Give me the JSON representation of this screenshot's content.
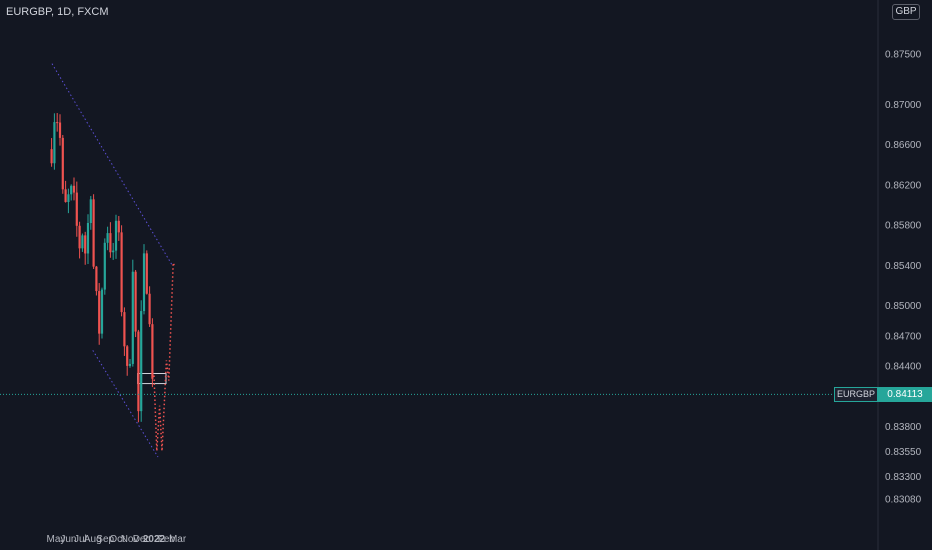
{
  "header": {
    "title": "EURGBP, 1D, FXCM",
    "currency": "GBP"
  },
  "last_price": {
    "symbol": "EURGBP",
    "value": "0.84113"
  },
  "colors": {
    "background": "#131722",
    "up": "#26a69a",
    "down": "#ef5350",
    "channel": "#5b4fd6",
    "projection": "#ef5350",
    "grid_text": "#b2b5be"
  },
  "chart_data": {
    "type": "candlestick",
    "title": "EURGBP, 1D, FXCM",
    "ylim": [
      0.8295,
      0.8755
    ],
    "y_ticks": [
      "0.87500",
      "0.87000",
      "0.86600",
      "0.86200",
      "0.85800",
      "0.85400",
      "0.85000",
      "0.84700",
      "0.84400",
      "0.83800",
      "0.83550",
      "0.83300",
      "0.83080"
    ],
    "x_ticks": [
      "May",
      "Jun",
      "Jul",
      "Aug",
      "Sep",
      "Oct",
      "Nov",
      "Dec",
      "2022",
      "Feb",
      "Mar"
    ],
    "close_path": [
      [
        "2021-04-20",
        0.8655
      ],
      [
        "2021-04-27",
        0.869
      ],
      [
        "2021-05-03",
        0.868
      ],
      [
        "2021-05-07",
        0.8705
      ],
      [
        "2021-05-12",
        0.8655
      ],
      [
        "2021-05-17",
        0.8605
      ],
      [
        "2021-05-21",
        0.861
      ],
      [
        "2021-05-27",
        0.859
      ],
      [
        "2021-06-01",
        0.8605
      ],
      [
        "2021-06-07",
        0.862
      ],
      [
        "2021-06-10",
        0.859
      ],
      [
        "2021-06-15",
        0.86
      ],
      [
        "2021-06-18",
        0.857
      ],
      [
        "2021-06-24",
        0.858
      ],
      [
        "2021-06-29",
        0.856
      ],
      [
        "2021-07-02",
        0.857
      ],
      [
        "2021-07-07",
        0.8575
      ],
      [
        "2021-07-12",
        0.8565
      ],
      [
        "2021-07-15",
        0.853
      ],
      [
        "2021-07-20",
        0.858
      ],
      [
        "2021-07-23",
        0.856
      ],
      [
        "2021-07-26",
        0.864
      ],
      [
        "2021-07-30",
        0.855
      ],
      [
        "2021-08-04",
        0.8535
      ],
      [
        "2021-08-09",
        0.851
      ],
      [
        "2021-08-13",
        0.848
      ],
      [
        "2021-08-18",
        0.8475
      ],
      [
        "2021-08-23",
        0.85
      ],
      [
        "2021-08-27",
        0.856
      ],
      [
        "2021-09-01",
        0.857
      ],
      [
        "2021-09-06",
        0.8575
      ],
      [
        "2021-09-10",
        0.858
      ],
      [
        "2021-09-14",
        0.856
      ],
      [
        "2021-09-17",
        0.854
      ],
      [
        "2021-09-22",
        0.8545
      ],
      [
        "2021-09-27",
        0.856
      ],
      [
        "2021-09-30",
        0.863
      ],
      [
        "2021-10-04",
        0.857
      ],
      [
        "2021-10-08",
        0.853
      ],
      [
        "2021-10-12",
        0.85
      ],
      [
        "2021-10-18",
        0.847
      ],
      [
        "2021-10-22",
        0.8445
      ],
      [
        "2021-10-27",
        0.8425
      ],
      [
        "2021-11-01",
        0.844
      ],
      [
        "2021-11-04",
        0.848
      ],
      [
        "2021-11-08",
        0.854
      ],
      [
        "2021-11-12",
        0.856
      ],
      [
        "2021-11-16",
        0.847
      ],
      [
        "2021-11-19",
        0.84
      ],
      [
        "2021-11-24",
        0.839
      ],
      [
        "2021-11-29",
        0.847
      ],
      [
        "2021-12-02",
        0.851
      ],
      [
        "2021-12-06",
        0.852
      ],
      [
        "2021-12-09",
        0.858
      ],
      [
        "2021-12-13",
        0.853
      ],
      [
        "2021-12-17",
        0.851
      ],
      [
        "2021-12-21",
        0.8495
      ],
      [
        "2021-12-24",
        0.844
      ],
      [
        "2021-12-28",
        0.842
      ],
      [
        "2021-12-31",
        0.84
      ],
      [
        "2022-01-03",
        0.8411
      ]
    ],
    "annotations": {
      "channel_upper": [
        [
          "2021-04-21",
          0.874
        ],
        [
          "2022-02-15",
          0.854
        ]
      ],
      "channel_lower": [
        [
          "2021-08-01",
          0.8455
        ],
        [
          "2022-01-11",
          0.8349
        ]
      ],
      "zone": {
        "from": "2021-11-21",
        "to": "2022-01-31",
        "top": 0.8432,
        "bottom": 0.8422
      },
      "last_price_line": 0.84113,
      "projection": [
        [
          "2022-01-01",
          0.843
        ],
        [
          "2022-01-08",
          0.8355
        ],
        [
          "2022-01-15",
          0.84
        ],
        [
          "2022-01-21",
          0.8355
        ],
        [
          "2022-02-01",
          0.8445
        ],
        [
          "2022-02-07",
          0.8425
        ],
        [
          "2022-02-18",
          0.8542
        ],
        [
          "2022-02-22",
          0.8538
        ]
      ]
    }
  }
}
